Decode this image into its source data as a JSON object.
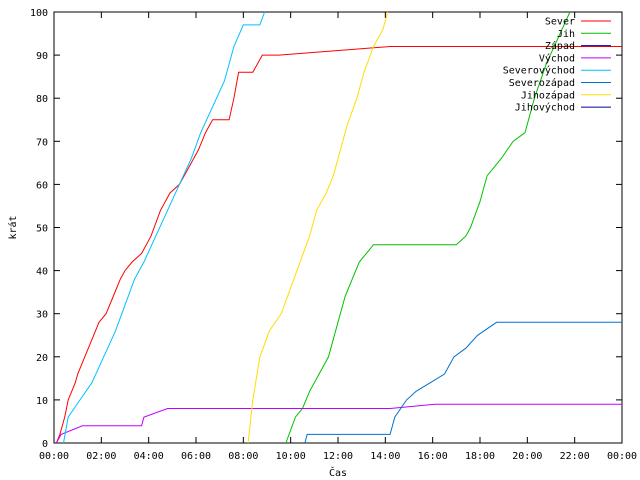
{
  "chart_data": {
    "type": "line",
    "xlabel": "Čas",
    "ylabel": "krát",
    "xlim": [
      0,
      24
    ],
    "ylim": [
      0,
      100
    ],
    "x_ticks": [
      {
        "value": 0,
        "label": "00:00"
      },
      {
        "value": 2,
        "label": "02:00"
      },
      {
        "value": 4,
        "label": "04:00"
      },
      {
        "value": 6,
        "label": "06:00"
      },
      {
        "value": 8,
        "label": "08:00"
      },
      {
        "value": 10,
        "label": "10:00"
      },
      {
        "value": 12,
        "label": "12:00"
      },
      {
        "value": 14,
        "label": "14:00"
      },
      {
        "value": 16,
        "label": "16:00"
      },
      {
        "value": 18,
        "label": "18:00"
      },
      {
        "value": 20,
        "label": "20:00"
      },
      {
        "value": 22,
        "label": "22:00"
      },
      {
        "value": 24,
        "label": "00:00"
      }
    ],
    "y_ticks": [
      0,
      10,
      20,
      30,
      40,
      50,
      60,
      70,
      80,
      90,
      100
    ],
    "grid": false,
    "legend": "top-right",
    "series": [
      {
        "name": "Sever",
        "color": "#ff0000",
        "points": [
          [
            0.1,
            0
          ],
          [
            0.25,
            2
          ],
          [
            0.45,
            6
          ],
          [
            0.6,
            10
          ],
          [
            0.9,
            14
          ],
          [
            1.0,
            16
          ],
          [
            1.3,
            20
          ],
          [
            1.6,
            24
          ],
          [
            1.9,
            28
          ],
          [
            2.2,
            30
          ],
          [
            2.5,
            34
          ],
          [
            2.8,
            38
          ],
          [
            3.0,
            40
          ],
          [
            3.3,
            42
          ],
          [
            3.7,
            44
          ],
          [
            4.1,
            48
          ],
          [
            4.5,
            54
          ],
          [
            4.9,
            58
          ],
          [
            5.3,
            60
          ],
          [
            5.7,
            64
          ],
          [
            6.1,
            68
          ],
          [
            6.4,
            72
          ],
          [
            6.7,
            75
          ],
          [
            7.0,
            75
          ],
          [
            7.4,
            75
          ],
          [
            7.6,
            80
          ],
          [
            7.8,
            86
          ],
          [
            8.4,
            86
          ],
          [
            8.8,
            90
          ],
          [
            9.5,
            90
          ],
          [
            14.2,
            92
          ],
          [
            24,
            92
          ]
        ]
      },
      {
        "name": "Jih",
        "color": "#00c000",
        "points": [
          [
            9.8,
            0
          ],
          [
            10.2,
            6
          ],
          [
            10.5,
            8
          ],
          [
            10.8,
            12
          ],
          [
            11.2,
            16
          ],
          [
            11.6,
            20
          ],
          [
            11.9,
            26
          ],
          [
            12.3,
            34
          ],
          [
            12.6,
            38
          ],
          [
            12.9,
            42
          ],
          [
            13.2,
            44
          ],
          [
            13.5,
            46
          ],
          [
            14.0,
            46
          ],
          [
            17.0,
            46
          ],
          [
            17.4,
            48
          ],
          [
            17.6,
            50
          ],
          [
            18.0,
            56
          ],
          [
            18.3,
            62
          ],
          [
            18.9,
            66
          ],
          [
            19.4,
            70
          ],
          [
            19.9,
            72
          ],
          [
            20.3,
            80
          ],
          [
            20.8,
            88
          ],
          [
            21.3,
            94
          ],
          [
            21.8,
            100
          ]
        ]
      },
      {
        "name": "Západ",
        "color": "#0000c0",
        "points": []
      },
      {
        "name": "Východ",
        "color": "#c000ff",
        "points": [
          [
            0.1,
            0
          ],
          [
            0.3,
            2
          ],
          [
            1.2,
            4
          ],
          [
            3.7,
            4
          ],
          [
            3.8,
            6
          ],
          [
            4.8,
            8
          ],
          [
            14.2,
            8
          ],
          [
            16.1,
            9
          ],
          [
            24,
            9
          ]
        ]
      },
      {
        "name": "Severovýchod",
        "color": "#00c0ff",
        "points": [
          [
            0.4,
            0
          ],
          [
            0.6,
            6
          ],
          [
            1.1,
            10
          ],
          [
            1.6,
            14
          ],
          [
            2.1,
            20
          ],
          [
            2.6,
            26
          ],
          [
            3.0,
            32
          ],
          [
            3.4,
            38
          ],
          [
            3.8,
            42
          ],
          [
            4.3,
            48
          ],
          [
            4.8,
            54
          ],
          [
            5.3,
            60
          ],
          [
            5.8,
            66
          ],
          [
            6.2,
            72
          ],
          [
            6.7,
            78
          ],
          [
            7.2,
            84
          ],
          [
            7.6,
            92
          ],
          [
            8.0,
            97
          ],
          [
            8.7,
            97
          ],
          [
            8.9,
            100
          ]
        ]
      },
      {
        "name": "Severozápad",
        "color": "#0070d0",
        "points": [
          [
            10.6,
            0
          ],
          [
            10.7,
            2
          ],
          [
            14.2,
            2
          ],
          [
            14.4,
            6
          ],
          [
            14.9,
            10
          ],
          [
            15.3,
            12
          ],
          [
            15.9,
            14
          ],
          [
            16.5,
            16
          ],
          [
            16.9,
            20
          ],
          [
            17.4,
            22
          ],
          [
            17.9,
            25
          ],
          [
            18.7,
            28
          ],
          [
            24,
            28
          ]
        ]
      },
      {
        "name": "Jihozápad",
        "color": "#ffdd00",
        "points": [
          [
            8.2,
            0
          ],
          [
            8.4,
            10
          ],
          [
            8.7,
            20
          ],
          [
            9.1,
            26
          ],
          [
            9.6,
            30
          ],
          [
            10.0,
            36
          ],
          [
            10.4,
            42
          ],
          [
            10.8,
            48
          ],
          [
            11.1,
            54
          ],
          [
            11.5,
            58
          ],
          [
            11.8,
            62
          ],
          [
            12.1,
            68
          ],
          [
            12.4,
            74
          ],
          [
            12.8,
            80
          ],
          [
            13.1,
            86
          ],
          [
            13.5,
            92
          ],
          [
            13.9,
            96
          ],
          [
            14.1,
            100
          ]
        ]
      },
      {
        "name": "Jihovýchod",
        "color": "#0000a0",
        "points": []
      }
    ]
  }
}
